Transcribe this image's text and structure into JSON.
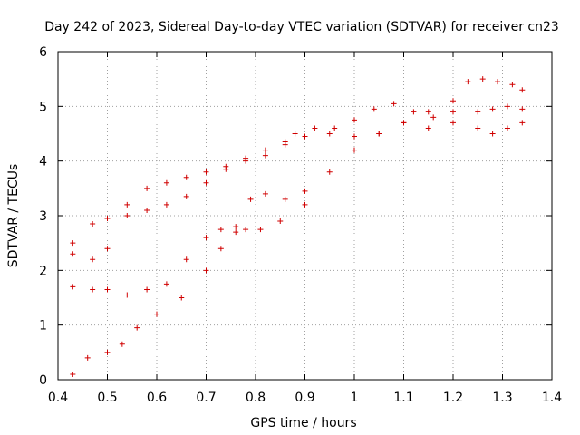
{
  "chart_data": {
    "type": "scatter",
    "title": "Day 242 of 2023, Sidereal Day-to-day VTEC variation (SDTVAR) for receiver cn23",
    "xlabel": "GPS time / hours",
    "ylabel": "SDTVAR / TECUs",
    "xlim": [
      0.4,
      1.4
    ],
    "ylim": [
      0,
      6
    ],
    "xticks": [
      "0.4",
      "0.5",
      "0.6",
      "0.7",
      "0.8",
      "0.9",
      "1",
      "1.1",
      "1.2",
      "1.3",
      "1.4"
    ],
    "yticks": [
      "0",
      "1",
      "2",
      "3",
      "4",
      "5",
      "6"
    ],
    "grid": true,
    "marker": "plus",
    "color": "#d00000",
    "series": [
      {
        "x": [
          0.43,
          0.46,
          0.5,
          0.53,
          0.56,
          0.6,
          0.65,
          0.7,
          0.73,
          0.76,
          0.78,
          0.81,
          0.85,
          0.9
        ],
        "y": [
          0.1,
          0.4,
          0.5,
          0.65,
          0.95,
          1.2,
          1.5,
          2.0,
          2.4,
          2.7,
          2.75,
          2.75,
          2.9,
          3.2
        ]
      },
      {
        "x": [
          0.43,
          0.47,
          0.5,
          0.54,
          0.58,
          0.62,
          0.66,
          0.7,
          0.73,
          0.76,
          0.79,
          0.82,
          0.86,
          0.9,
          0.95,
          1.0,
          1.05,
          1.1,
          1.15,
          1.2,
          1.25,
          1.28,
          1.31,
          1.34
        ],
        "y": [
          1.7,
          1.65,
          1.65,
          1.55,
          1.65,
          1.75,
          2.2,
          2.6,
          2.75,
          2.8,
          3.3,
          3.4,
          3.3,
          3.45,
          3.8,
          4.2,
          4.5,
          4.7,
          4.6,
          4.7,
          4.6,
          4.5,
          4.6,
          4.7
        ]
      },
      {
        "x": [
          0.43,
          0.47,
          0.5,
          0.54,
          0.58,
          0.62,
          0.66,
          0.7,
          0.74,
          0.78,
          0.82,
          0.86,
          0.9,
          0.95,
          1.0,
          1.05,
          1.1,
          1.15,
          1.2,
          1.25,
          1.28,
          1.31,
          1.34
        ],
        "y": [
          2.3,
          2.2,
          2.4,
          3.2,
          3.5,
          3.6,
          3.7,
          3.8,
          3.9,
          4.0,
          4.1,
          4.3,
          4.45,
          4.5,
          4.45,
          4.5,
          4.7,
          4.9,
          4.9,
          4.9,
          4.95,
          5.0,
          4.95
        ]
      },
      {
        "x": [
          0.43,
          0.47,
          0.5,
          0.54,
          0.58,
          0.62,
          0.66,
          0.7,
          0.74,
          0.78,
          0.82,
          0.86,
          0.88,
          0.92,
          0.96,
          1.0,
          1.04,
          1.08,
          1.12,
          1.16,
          1.2,
          1.23,
          1.26,
          1.29,
          1.32,
          1.34
        ],
        "y": [
          2.5,
          2.85,
          2.95,
          3.0,
          3.1,
          3.2,
          3.35,
          3.6,
          3.85,
          4.05,
          4.2,
          4.35,
          4.5,
          4.6,
          4.6,
          4.75,
          4.95,
          5.05,
          4.9,
          4.8,
          5.1,
          5.45,
          5.5,
          5.45,
          5.4,
          5.3
        ]
      }
    ]
  }
}
